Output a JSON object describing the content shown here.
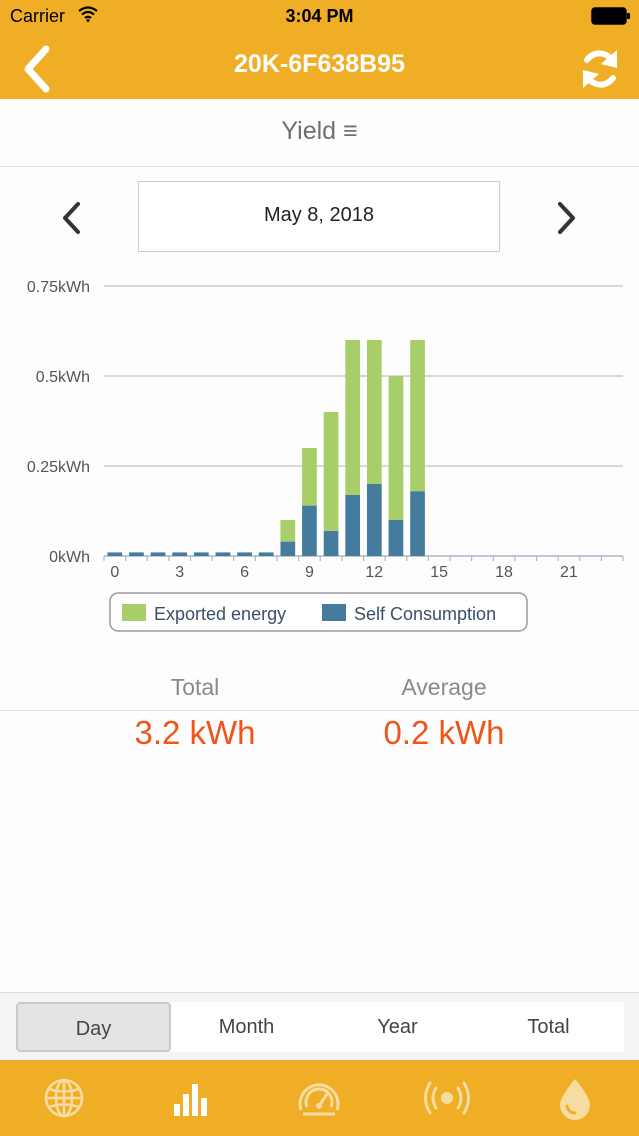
{
  "status_bar": {
    "carrier": "Carrier",
    "time": "3:04 PM"
  },
  "nav": {
    "title": "20K-6F638B95"
  },
  "section": {
    "title": "Yield ≡"
  },
  "date": {
    "label": "May 8, 2018"
  },
  "chart_data": {
    "type": "bar",
    "stacked": true,
    "categories": [
      "0",
      "1",
      "2",
      "3",
      "4",
      "5",
      "6",
      "7",
      "8",
      "9",
      "10",
      "11",
      "12",
      "13",
      "14"
    ],
    "series": [
      {
        "name": "Self Consumption",
        "color": "#457b9d",
        "values": [
          0.01,
          0.01,
          0.01,
          0.01,
          0.01,
          0.01,
          0.01,
          0.01,
          0.04,
          0.14,
          0.07,
          0.17,
          0.2,
          0.1,
          0.18
        ]
      },
      {
        "name": "Exported energy",
        "color": "#a8ce6a",
        "values": [
          0,
          0,
          0,
          0,
          0,
          0,
          0,
          0,
          0.06,
          0.16,
          0.33,
          0.43,
          0.4,
          0.4,
          0.42
        ]
      }
    ],
    "ylim": [
      0,
      0.75
    ],
    "yticks": [
      "0kWh",
      "0.25kWh",
      "0.5kWh",
      "0.75kWh"
    ],
    "xticks": [
      "0",
      "3",
      "6",
      "9",
      "12",
      "15",
      "18",
      "21"
    ],
    "x_range": [
      0,
      24
    ],
    "grid": true,
    "legend_position": "bottom"
  },
  "stats": {
    "total_label": "Total",
    "total_value": "3.2 kWh",
    "average_label": "Average",
    "average_value": "0.2 kWh"
  },
  "periods": {
    "items": [
      "Day",
      "Month",
      "Year",
      "Total"
    ],
    "selected": "Day"
  },
  "tabs": [
    {
      "icon": "globe-icon"
    },
    {
      "icon": "bar-chart-icon",
      "active": true
    },
    {
      "icon": "gauge-icon"
    },
    {
      "icon": "signal-icon"
    },
    {
      "icon": "drop-icon"
    }
  ],
  "colors": {
    "accent": "#efae26",
    "value": "#ef5418"
  }
}
